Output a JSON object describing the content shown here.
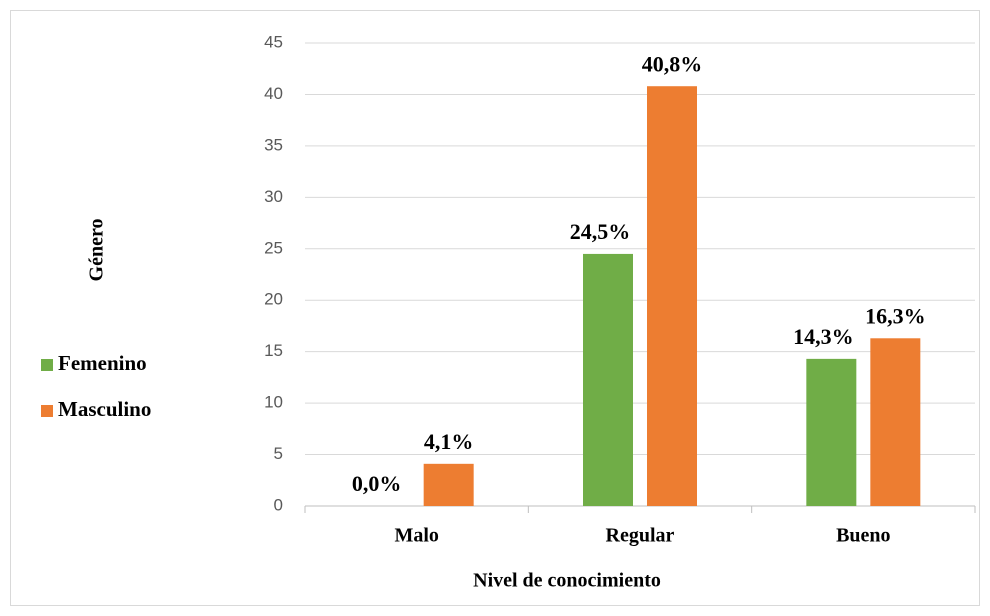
{
  "chart_data": {
    "type": "bar",
    "categories": [
      "Malo",
      "Regular",
      "Bueno"
    ],
    "series": [
      {
        "name": "Femenino",
        "color": "#70ad47",
        "values": [
          0,
          24.5,
          14.3
        ],
        "value_labels": [
          "0,0%",
          "24,5%",
          "14,3%"
        ]
      },
      {
        "name": "Masculino",
        "color": "#ed7d31",
        "values": [
          4.1,
          40.8,
          16.3
        ],
        "value_labels": [
          "4,1%",
          "40,8%",
          "16,3%"
        ]
      }
    ],
    "ylim": [
      0,
      45
    ],
    "yticks": [
      0,
      5,
      10,
      15,
      20,
      25,
      30,
      35,
      40,
      45
    ],
    "grid": true,
    "xlabel": "Nivel de conocimiento",
    "ylabel": "Género",
    "legend": "left"
  }
}
